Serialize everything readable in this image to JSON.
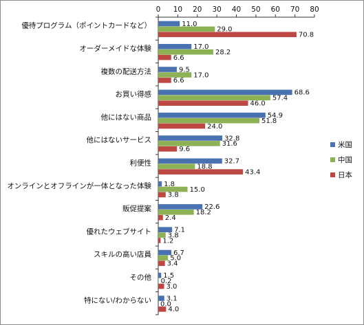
{
  "chart_data": {
    "type": "bar",
    "orientation": "horizontal",
    "title": "",
    "xlabel": "",
    "ylabel": "",
    "xlim": [
      0,
      80
    ],
    "xticks": [
      0,
      10,
      20,
      30,
      40,
      50,
      60,
      70,
      80
    ],
    "x_axis_position": "top",
    "grid": false,
    "legend_position": "right",
    "categories": [
      "優待プログラム（ポイントカードなど）",
      "オーダーメイドな体験",
      "複数の配送方法",
      "お買い得感",
      "他にはない商品",
      "他にはないサービス",
      "利便性",
      "オンラインとオフラインが一体となった体験",
      "販促提案",
      "優れたウェブサイト",
      "スキルの高い店員",
      "その他",
      "特にない/わからない"
    ],
    "series": [
      {
        "name": "米国",
        "color": "#4a72b0",
        "values": [
          11.0,
          17.0,
          9.5,
          68.6,
          54.9,
          32.8,
          32.7,
          1.8,
          22.6,
          7.1,
          6.7,
          1.5,
          3.1
        ]
      },
      {
        "name": "中国",
        "color": "#8db255",
        "values": [
          29.0,
          28.2,
          17.0,
          57.4,
          51.8,
          31.6,
          18.8,
          15.0,
          18.2,
          3.8,
          5.0,
          0.2,
          0.0
        ]
      },
      {
        "name": "日本",
        "color": "#bd4843",
        "values": [
          70.8,
          6.6,
          6.6,
          46.0,
          24.0,
          9.6,
          43.4,
          3.8,
          2.4,
          1.2,
          3.4,
          3.0,
          4.0
        ]
      }
    ],
    "value_labels": [
      [
        "11.0",
        "17.0",
        "9.5",
        "68.6",
        "54.9",
        "32.8",
        "32.7",
        "1.8",
        "22.6",
        "7.1",
        "6.7",
        "1.5",
        "3.1"
      ],
      [
        "29.0",
        "28.2",
        "17.0",
        "57.4",
        "51.8",
        "31.6",
        "18.8",
        "15.0",
        "18.2",
        "3.8",
        "5.0",
        "0.2",
        "0.0"
      ],
      [
        "70.8",
        "6.6",
        "6.6",
        "46.0",
        "24.0",
        "9.6",
        "43.4",
        "3.8",
        "2.4",
        "1.2",
        "3.4",
        "3.0",
        "4.0"
      ]
    ]
  }
}
